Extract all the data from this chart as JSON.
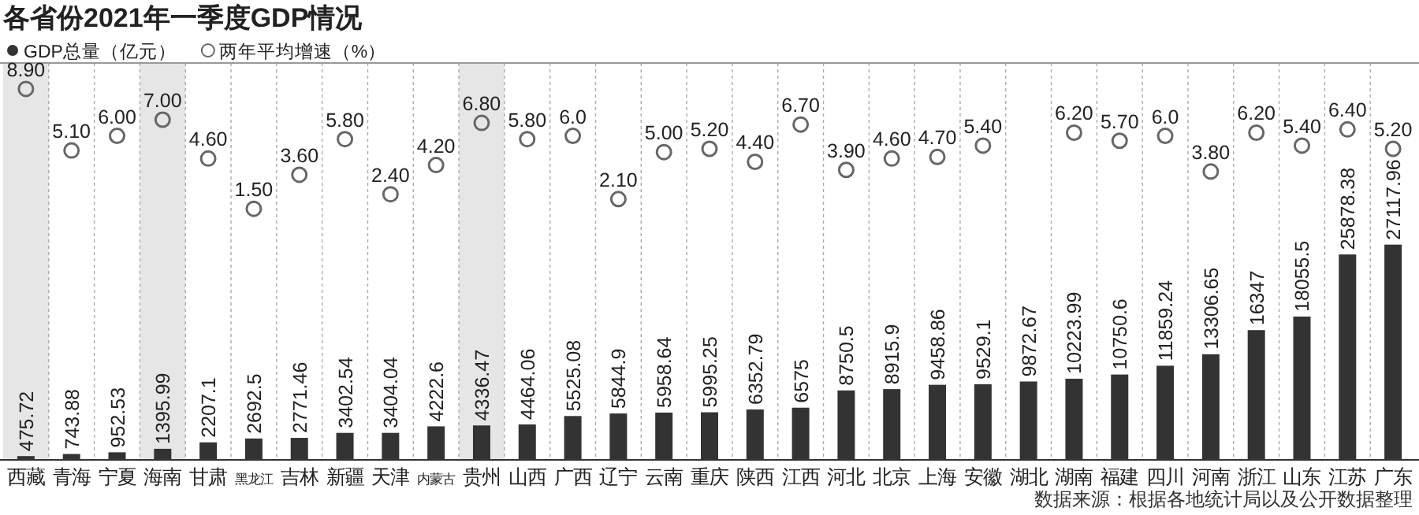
{
  "chart_data": {
    "type": "bar",
    "title": "各省份2021年一季度GDP情况",
    "categories": [
      "西藏",
      "青海",
      "宁夏",
      "海南",
      "甘肃",
      "黑龙江",
      "吉林",
      "新疆",
      "天津",
      "内蒙古",
      "贵州",
      "山西",
      "广西",
      "辽宁",
      "云南",
      "重庆",
      "陕西",
      "江西",
      "河北",
      "北京",
      "上海",
      "安徽",
      "湖北",
      "湖南",
      "福建",
      "四川",
      "河南",
      "浙江",
      "山东",
      "江苏",
      "广东"
    ],
    "series": [
      {
        "name": "GDP总量（亿元）",
        "color": "#333333",
        "values": [
          475.72,
          743.88,
          952.53,
          1395.99,
          2207.1,
          2692.5,
          2771.46,
          3402.54,
          3404.04,
          4222.6,
          4336.47,
          4464.06,
          5525.08,
          5844.9,
          5958.64,
          5995.25,
          6352.79,
          6575,
          8750.5,
          8915.9,
          9458.86,
          9529.1,
          9872.67,
          10223.99,
          10750.6,
          11859.24,
          13306.65,
          16347,
          18055.5,
          25878.38,
          27117.96
        ],
        "value_labels": [
          "475.72",
          "743.88",
          "952.53",
          "1395.99",
          "2207.1",
          "2692.5",
          "2771.46",
          "3402.54",
          "3404.04",
          "4222.6",
          "4336.47",
          "4464.06",
          "5525.08",
          "5844.9",
          "5958.64",
          "5995.25",
          "6352.79",
          "6575",
          "8750.5",
          "8915.9",
          "9458.86",
          "9529.1",
          "9872.67",
          "10223.99",
          "10750.6",
          "11859.24",
          "13306.65",
          "16347",
          "18055.5",
          "25878.38",
          "27117.96"
        ]
      },
      {
        "name": "两年平均增速（%）",
        "type": "scatter",
        "axis": "y2",
        "marker": "circle",
        "color": "#666666",
        "values": [
          8.9,
          5.1,
          6.0,
          7.0,
          4.6,
          1.5,
          3.6,
          5.8,
          2.4,
          4.2,
          6.8,
          5.8,
          6.0,
          2.1,
          5.0,
          5.2,
          4.4,
          6.7,
          3.9,
          4.6,
          4.7,
          5.4,
          null,
          6.2,
          5.7,
          6.0,
          3.8,
          6.2,
          5.4,
          6.4,
          5.2
        ],
        "value_labels": [
          "8.90",
          "5.10",
          "6.00",
          "7.00",
          "4.60",
          "1.50",
          "3.60",
          "5.80",
          "2.40",
          "4.20",
          "6.80",
          "5.80",
          "6.0",
          "2.10",
          "5.00",
          "5.20",
          "4.40",
          "6.70",
          "3.90",
          "4.60",
          "4.70",
          "5.40",
          null,
          "6.20",
          "5.70",
          "6.0",
          "3.80",
          "6.20",
          "5.40",
          "6.40",
          "5.20"
        ]
      }
    ],
    "bands": [
      {
        "axis": "x",
        "from": "西藏",
        "to": "西藏",
        "color": "#e6e6e6"
      },
      {
        "axis": "x",
        "from": "海南",
        "to": "海南",
        "color": "#e6e6e6"
      },
      {
        "axis": "x",
        "from": "贵州",
        "to": "贵州",
        "color": "#e6e6e6"
      }
    ],
    "ylim": [
      0,
      50000
    ],
    "y2lim": [
      -14,
      10.5
    ],
    "tick_labels": "x",
    "grid": "x",
    "legend": "top left",
    "annotations": [
      "数据来源：根据各地统计局以及公开数据整理"
    ]
  }
}
